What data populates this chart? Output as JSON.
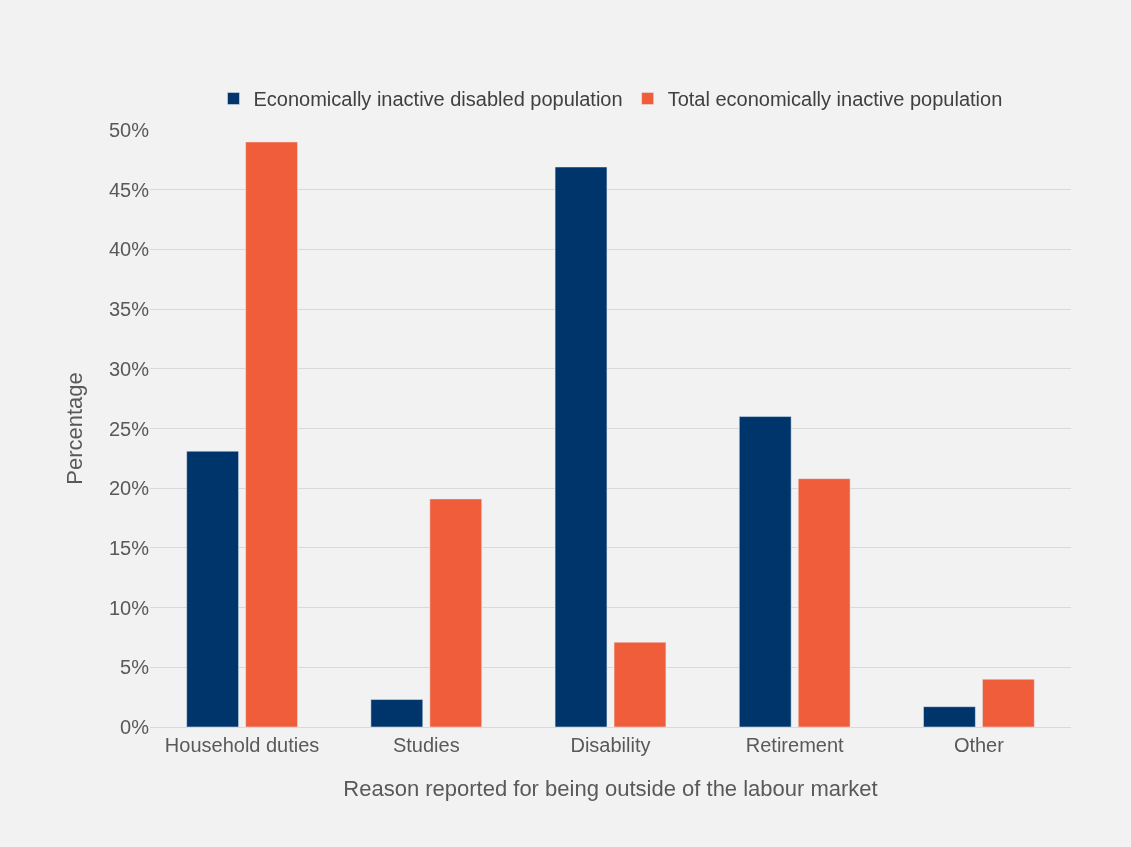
{
  "chart_data": {
    "type": "bar",
    "xlabel": "Reason reported for being outside of the labour market",
    "ylabel": "Percentage",
    "categories": [
      "Household duties",
      "Studies",
      "Disability",
      "Retirement",
      "Other"
    ],
    "series": [
      {
        "name": "Economically inactive disabled population",
        "color": "#00356b",
        "values": [
          23.1,
          2.3,
          46.9,
          26,
          1.7
        ]
      },
      {
        "name": "Total economically inactive population",
        "color": "#f05d3b",
        "values": [
          49,
          19.1,
          7.1,
          20.8,
          4
        ]
      }
    ],
    "ylim": [
      0,
      50
    ],
    "yticks": [
      {
        "value": 0,
        "label": "0%"
      },
      {
        "value": 5,
        "label": "5%"
      },
      {
        "value": 10,
        "label": "10%"
      },
      {
        "value": 15,
        "label": "15%"
      },
      {
        "value": 20,
        "label": "20%"
      },
      {
        "value": 25,
        "label": "25%"
      },
      {
        "value": 30,
        "label": "30%"
      },
      {
        "value": 35,
        "label": "35%"
      },
      {
        "value": 40,
        "label": "40%"
      },
      {
        "value": 45,
        "label": "45%"
      },
      {
        "value": 50,
        "label": "50%"
      }
    ],
    "grid": "y",
    "legend": "top"
  }
}
